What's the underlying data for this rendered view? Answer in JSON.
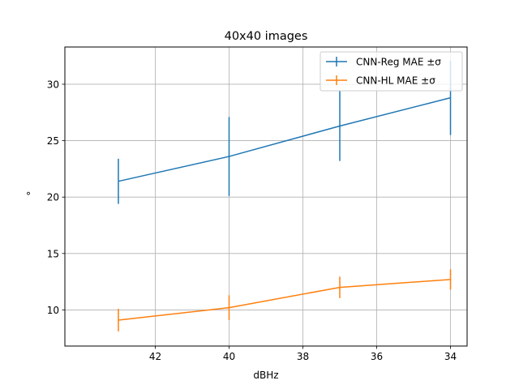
{
  "chart_data": {
    "type": "line",
    "title": "40x40 images",
    "xlabel": "dBHz",
    "ylabel": "°",
    "x": [
      43,
      40,
      37,
      34
    ],
    "xlim": [
      44.45,
      33.55
    ],
    "ylim": [
      6.8,
      33.3
    ],
    "x_ticks": [
      42,
      40,
      38,
      36,
      34
    ],
    "y_ticks": [
      10,
      15,
      20,
      25,
      30
    ],
    "x_axis_inverted": true,
    "grid": true,
    "legend_position": "top-right",
    "series": [
      {
        "name": "CNN-Reg MAE ±σ",
        "color": "#1f77b4",
        "values": [
          21.4,
          23.6,
          26.3,
          28.8
        ],
        "errors": [
          2.0,
          3.5,
          3.1,
          3.3
        ]
      },
      {
        "name": "CNN-HL MAE ±σ",
        "color": "#ff7f0e",
        "values": [
          9.1,
          10.2,
          12.0,
          12.7
        ],
        "errors": [
          1.0,
          1.1,
          0.95,
          0.9
        ]
      }
    ]
  }
}
